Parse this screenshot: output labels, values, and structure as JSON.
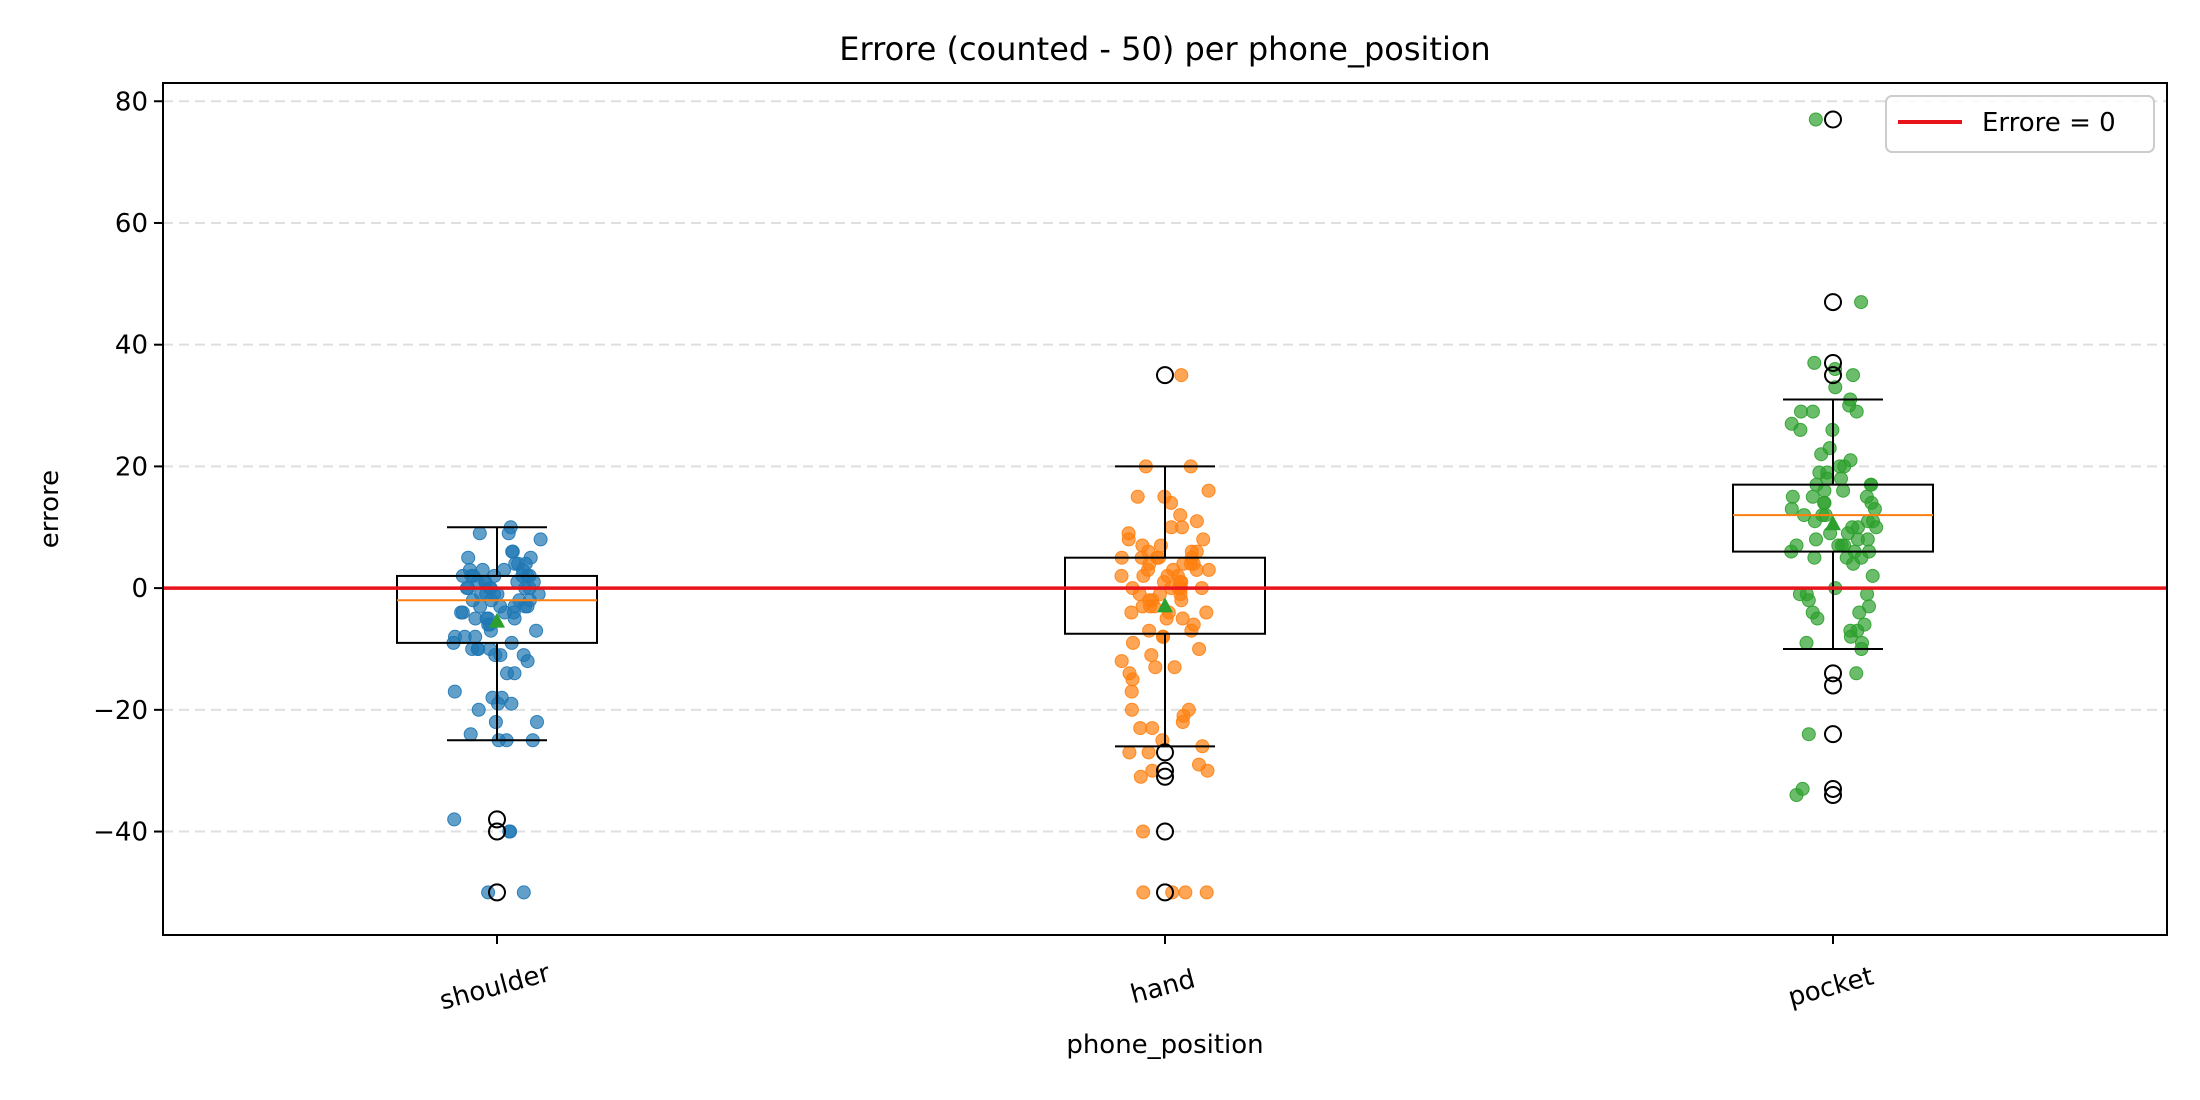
{
  "chart_data": {
    "type": "box+strip",
    "title": "Errore (counted - 50) per phone_position",
    "xlabel": "phone_position",
    "ylabel": "errore",
    "categories": [
      "shoulder",
      "hand",
      "pocket"
    ],
    "ylim": [
      -57,
      83
    ],
    "yticks": [
      80,
      60,
      40,
      20,
      0,
      -20,
      -40
    ],
    "ytick_labels": [
      "80",
      "60",
      "40",
      "20",
      "0",
      "−20",
      "−40"
    ],
    "grid": "horizontal dashed",
    "legend": {
      "position": "top-right",
      "label": "Errore = 0",
      "color": "#e8141b"
    },
    "reference_line": {
      "y": 0,
      "color": "#e8141b"
    },
    "colors": {
      "shoulder": "#1f77b4",
      "hand": "#ff7f0e",
      "pocket": "#2ca02c",
      "median": "#ff7f0e",
      "mean_marker": "#2ca02c"
    },
    "boxes": [
      {
        "category": "shoulder",
        "q1": -9,
        "median": -2,
        "q3": 2,
        "whisker_low": -25,
        "whisker_high": 10,
        "mean": -5.5,
        "outliers": [
          -38,
          -40,
          -50
        ]
      },
      {
        "category": "hand",
        "q1": -7.5,
        "median": 0,
        "q3": 5,
        "whisker_low": -26,
        "whisker_high": 20,
        "mean": -3,
        "outliers": [
          35,
          -27,
          -30,
          -31,
          -40,
          -50
        ]
      },
      {
        "category": "pocket",
        "q1": 6,
        "median": 12,
        "q3": 17,
        "whisker_low": -10,
        "whisker_high": 31,
        "mean": 10.5,
        "outliers": [
          77,
          47,
          37,
          35,
          -14,
          -16,
          -24,
          -33,
          -34
        ]
      }
    ],
    "points": {
      "shoulder": [
        10,
        9,
        9,
        8,
        6,
        6,
        5,
        5,
        4,
        4,
        4,
        3,
        3,
        3,
        3,
        2,
        2,
        2,
        2,
        2,
        2,
        2,
        1,
        1,
        1,
        1,
        1,
        0,
        0,
        0,
        0,
        0,
        0,
        -1,
        -1,
        -1,
        -1,
        -1,
        -2,
        -2,
        -2,
        -2,
        -3,
        -3,
        -3,
        -3,
        -3,
        -4,
        -4,
        -4,
        -4,
        -5,
        -5,
        -5,
        -5,
        -6,
        -6,
        -7,
        -7,
        -8,
        -8,
        -8,
        -9,
        -9,
        -10,
        -10,
        -10,
        -10,
        -11,
        -11,
        -11,
        -12,
        -14,
        -14,
        -17,
        -18,
        -18,
        -19,
        -19,
        -20,
        -22,
        -22,
        -24,
        -25,
        -25,
        -25,
        -38,
        -40,
        -40,
        -50,
        -50
      ],
      "hand": [
        35,
        20,
        20,
        16,
        15,
        15,
        14,
        12,
        11,
        10,
        10,
        9,
        8,
        8,
        7,
        7,
        6,
        6,
        6,
        5,
        5,
        5,
        5,
        5,
        4,
        4,
        4,
        4,
        3,
        3,
        3,
        3,
        2,
        2,
        2,
        2,
        1,
        1,
        1,
        0,
        0,
        0,
        0,
        0,
        -1,
        -1,
        -1,
        -2,
        -2,
        -2,
        -3,
        -3,
        -3,
        -4,
        -4,
        -4,
        -5,
        -5,
        -6,
        -7,
        -7,
        -8,
        -8,
        -9,
        -10,
        -11,
        -12,
        -13,
        -13,
        -14,
        -15,
        -17,
        -20,
        -20,
        -21,
        -22,
        -23,
        -23,
        -25,
        -26,
        -27,
        -27,
        -29,
        -30,
        -30,
        -31,
        -40,
        -50,
        -50,
        -50,
        -50
      ],
      "pocket": [
        77,
        47,
        37,
        36,
        35,
        33,
        31,
        30,
        29,
        29,
        29,
        27,
        26,
        26,
        23,
        22,
        21,
        20,
        20,
        19,
        19,
        18,
        18,
        17,
        17,
        17,
        16,
        16,
        15,
        15,
        15,
        14,
        14,
        14,
        13,
        13,
        12,
        12,
        12,
        11,
        11,
        11,
        10,
        10,
        10,
        9,
        9,
        8,
        8,
        8,
        7,
        7,
        7,
        7,
        6,
        6,
        6,
        5,
        5,
        5,
        4,
        2,
        0,
        -1,
        -1,
        -1,
        -2,
        -3,
        -4,
        -4,
        -5,
        -6,
        -7,
        -7,
        -8,
        -9,
        -9,
        -10,
        -14,
        -24,
        -33,
        -34
      ]
    }
  }
}
